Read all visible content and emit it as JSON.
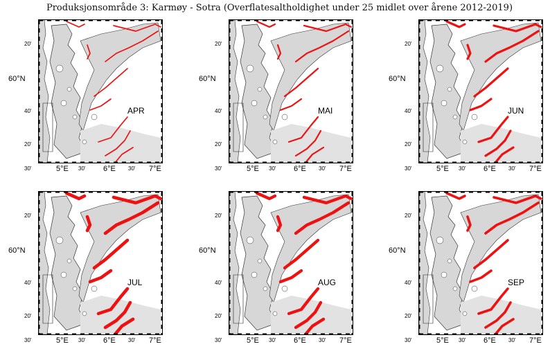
{
  "title": "Produksjonsområde 3: Karmøy - Sotra (Overflatesaltholdighet under 25 midlet over årene 2012-2019)",
  "axis": {
    "lat_major": "60°N",
    "lat_minor_top": "20'",
    "lat_minor_mid": "40'",
    "lat_minor_bottom": "20'",
    "lon_30a": "30'",
    "lon_5": "5°E",
    "lon_30b": "30'",
    "lon_6": "6°E",
    "lon_30c": "30'",
    "lon_7": "7°E"
  },
  "panels": [
    {
      "month": "APR",
      "extent": 0.15
    },
    {
      "month": "MAI",
      "extent": 0.3
    },
    {
      "month": "JUN",
      "extent": 0.6
    },
    {
      "month": "JUL",
      "extent": 1.0
    },
    {
      "month": "AUG",
      "extent": 0.9
    },
    {
      "month": "SEP",
      "extent": 0.7
    }
  ],
  "colors": {
    "land": "#d7d7d7",
    "coast_outline": "#333333",
    "low_salinity": "#ee1111",
    "frame": "#000000"
  }
}
